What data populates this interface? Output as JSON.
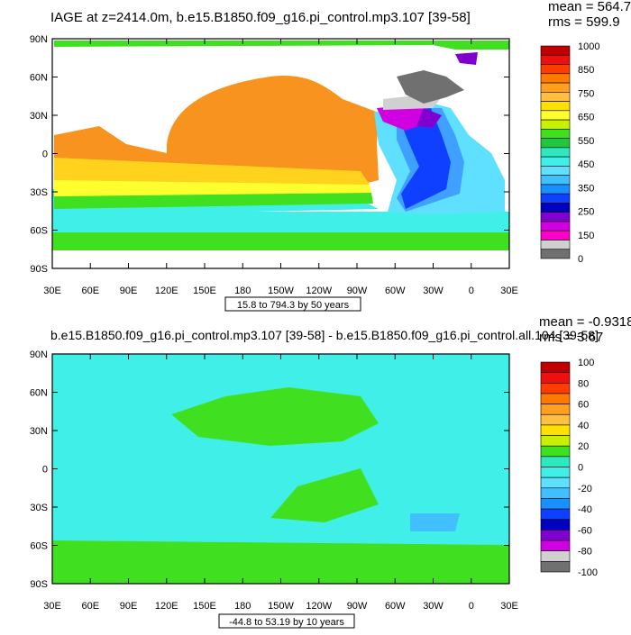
{
  "top_panel": {
    "title": "IAGE at z=2414.0m, b.e15.B1850.f09_g16.pi_control.mp3.107 [39-58]",
    "mean_text": "mean = 564.7",
    "rms_text": "rms = 599.9",
    "range_text": "15.8 to 794.3 by 50 years",
    "colorbar_labels": [
      "1000",
      "850",
      "750",
      "650",
      "550",
      "450",
      "350",
      "250",
      "150",
      "0"
    ],
    "colors": [
      "#c00000",
      "#ee1010",
      "#ff3c00",
      "#ff7a00",
      "#ff9e20",
      "#ffc040",
      "#ffe000",
      "#ffff30",
      "#c8f000",
      "#40e020",
      "#20c840",
      "#30e8c0",
      "#40f0e8",
      "#60e0ff",
      "#40c0ff",
      "#1890ff",
      "#1040ff",
      "#0000c0",
      "#8000d0",
      "#d000e0",
      "#ff00c8",
      "#d0d0d0",
      "#707070"
    ],
    "key_colors": {
      "ocean_main": "#f7931e",
      "tropics_band": "#ffd21e",
      "equator_band": "#ffff30",
      "south_green": "#40e020",
      "southern_ocean": "#40f0e8",
      "high_lat": "#58e8a0",
      "arctic": "#40e020",
      "arctic_gray": "#707070",
      "labrador_light": "#d0d0d0",
      "atlantic_magenta": "#d000e0",
      "atlantic_purple": "#8000d0",
      "atlantic_deepblue": "#1040ff",
      "atlantic_blue": "#40a0ff",
      "atlantic_light": "#60e0ff"
    }
  },
  "bottom_panel": {
    "title": "b.e15.B1850.f09_g16.pi_control.mp3.107 [39-58] - b.e15.B1850.f09_g16.pi_control.all.104 [39-58]",
    "mean_text": "mean = -0.9318",
    "rms_text": "rms = 3.67",
    "range_text": "-44.8 to 53.19 by 10 years",
    "colorbar_labels": [
      "100",
      "80",
      "60",
      "40",
      "20",
      "0",
      "-20",
      "-40",
      "-60",
      "-80",
      "-100"
    ],
    "colors": [
      "#c00000",
      "#ee1010",
      "#ff3c00",
      "#ff7a00",
      "#ff9e20",
      "#ffc040",
      "#ffe000",
      "#c8f000",
      "#40e020",
      "#30e8c0",
      "#40f0e8",
      "#60e0ff",
      "#40c0ff",
      "#1890ff",
      "#1040ff",
      "#0000c0",
      "#8000d0",
      "#d000e0",
      "#d0d0d0",
      "#707070"
    ],
    "key_colors": {
      "ocean_cyan": "#40f0e8",
      "ocean_green": "#40e020",
      "light_blue": "#40c0ff"
    }
  },
  "axes": {
    "lat_labels": [
      "90N",
      "60N",
      "30N",
      "0",
      "30S",
      "60S",
      "90S"
    ],
    "lon_labels": [
      "30E",
      "60E",
      "90E",
      "120E",
      "150E",
      "180",
      "150W",
      "120W",
      "90W",
      "60W",
      "30W",
      "0",
      "30E"
    ]
  }
}
